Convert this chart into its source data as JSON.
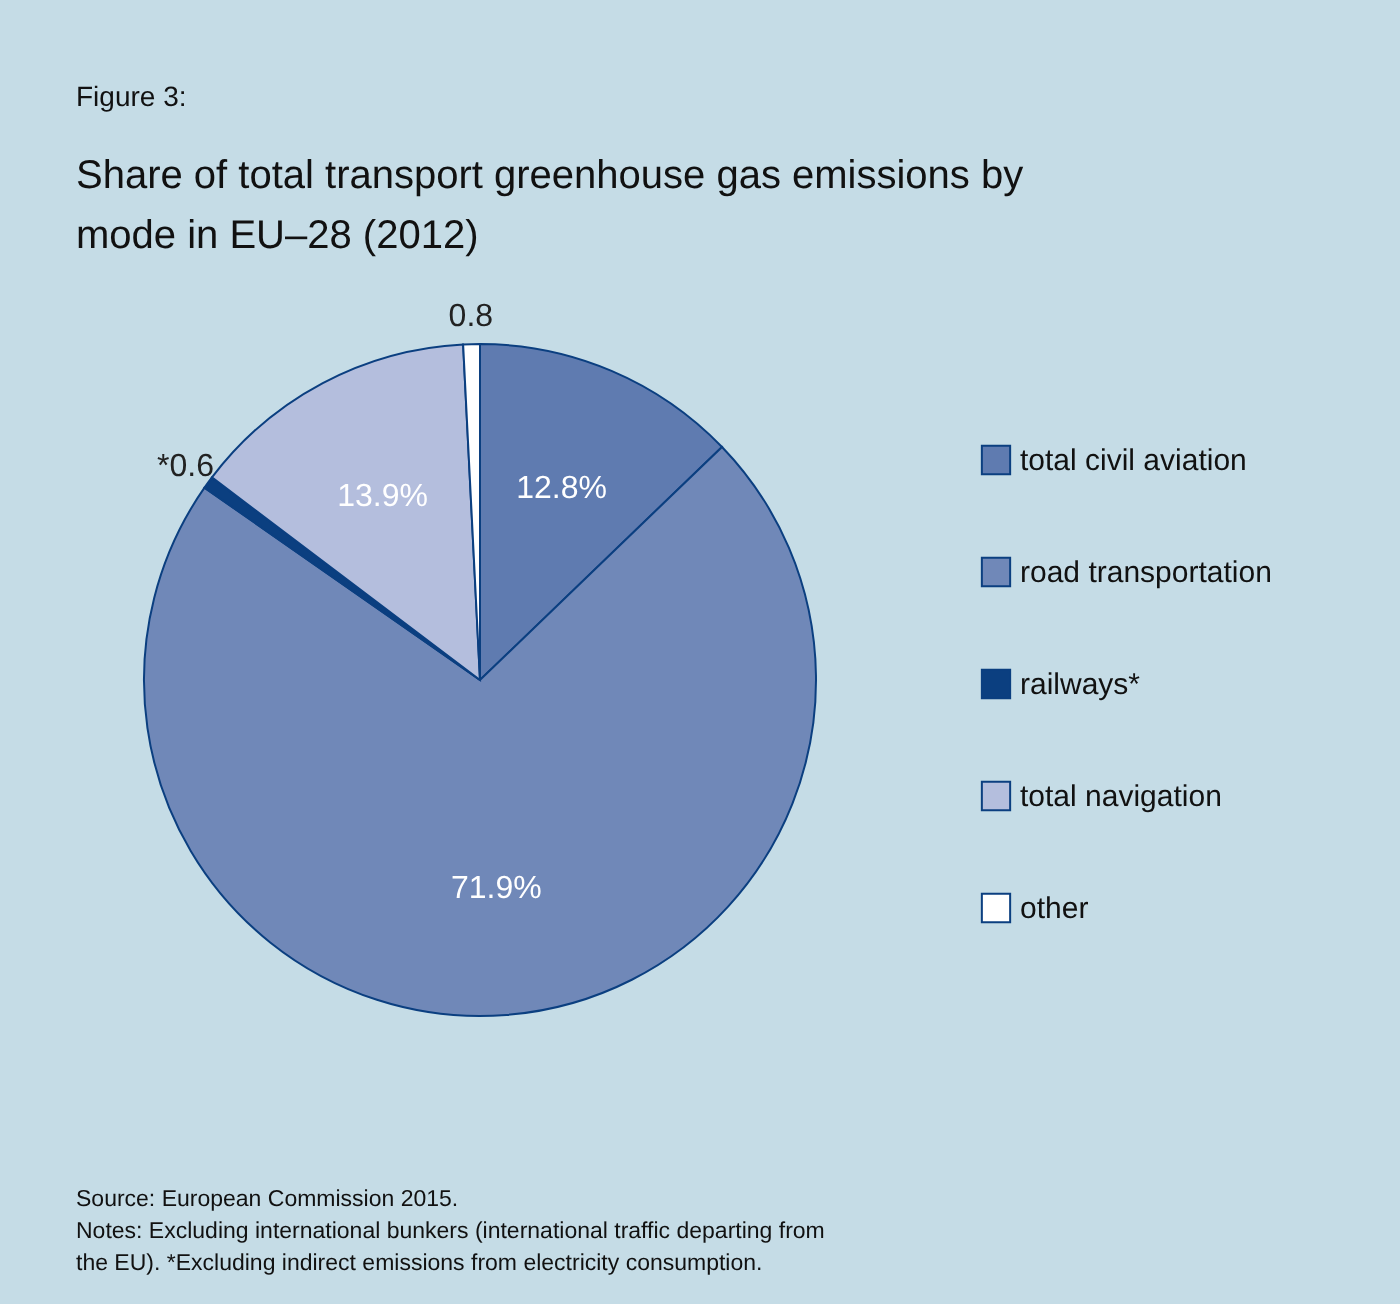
{
  "chart_data": {
    "type": "pie",
    "title": "Share of total transport greenhouse gas emissions by mode in EU–28 (2012)",
    "categories": [
      "total civil aviation",
      "road transportation",
      "railways*",
      "total navigation",
      "other"
    ],
    "values": [
      12.8,
      71.9,
      0.6,
      13.9,
      0.8
    ],
    "colors": [
      "#5f7bb0",
      "#7088b8",
      "#0b3f80",
      "#b4bedd",
      "#ffffff"
    ],
    "value_labels": [
      "12.8%",
      "71.9%",
      "*0.6",
      "13.9%",
      "0.8"
    ],
    "legend": "right",
    "annotations": [
      "Figure 3:",
      "Source: European Commission 2015.",
      "Notes: Excluding international bunkers (international traffic departing from the EU). *Excluding indirect emissions from electricity consumption."
    ]
  }
}
